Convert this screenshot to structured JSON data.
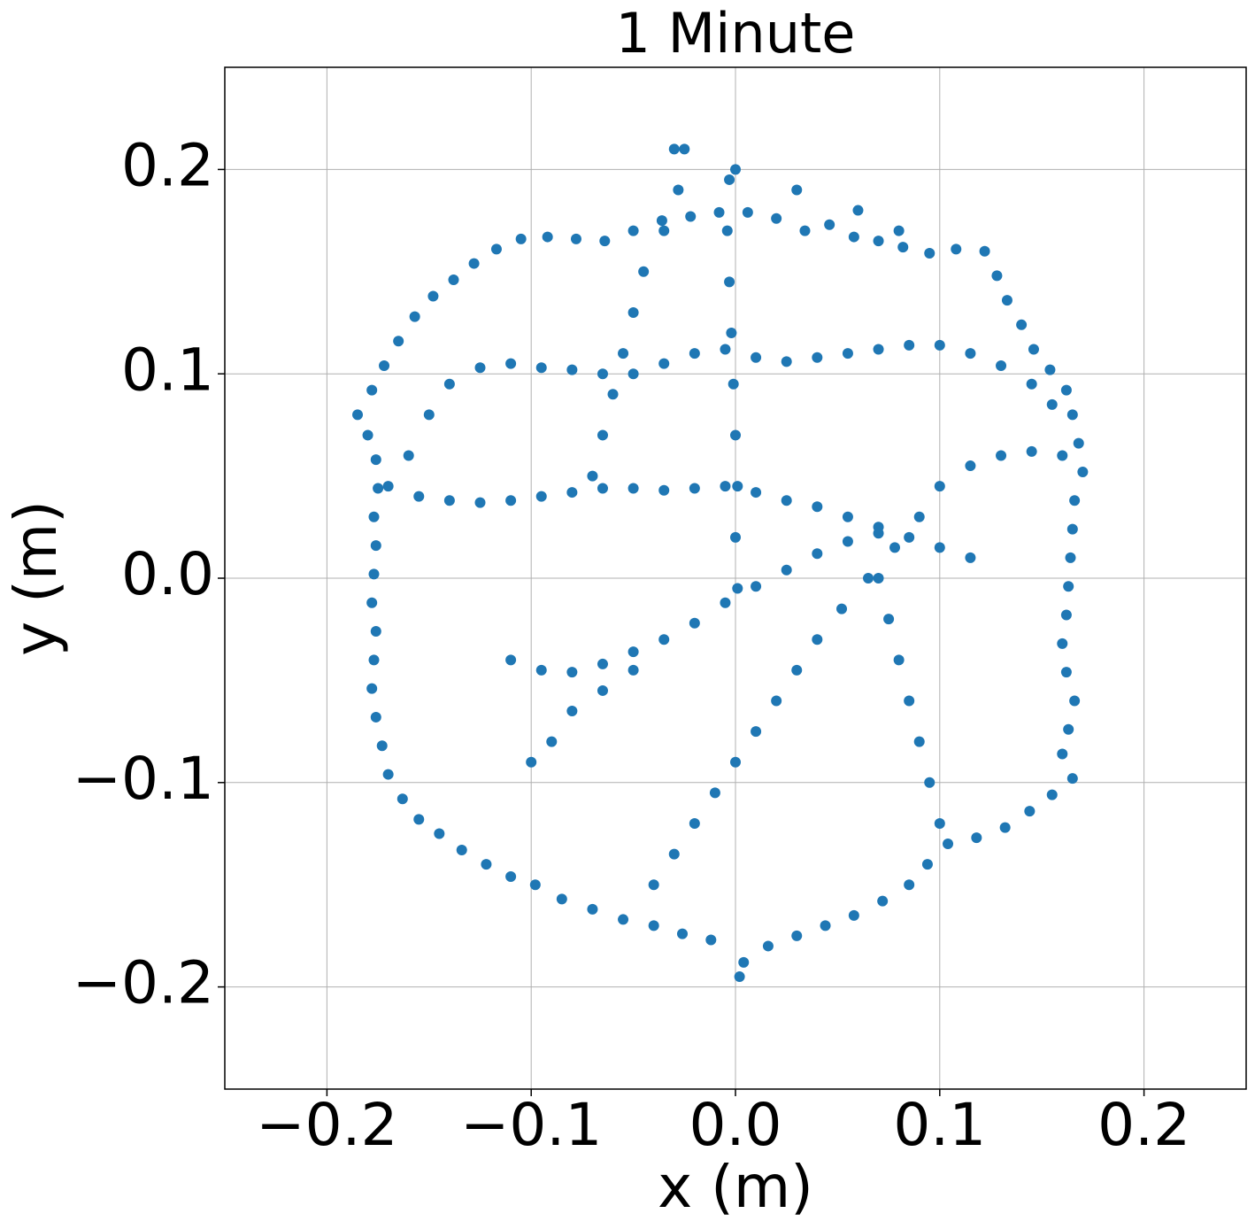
{
  "chart_data": {
    "type": "scatter",
    "title": "1 Minute",
    "x_label": "x (m)",
    "y_label": "y (m)",
    "color": "#1f77b4",
    "grid": true,
    "xlim": [
      -0.25,
      0.25
    ],
    "ylim": [
      -0.25,
      0.25
    ],
    "xticks": [
      {
        "value": -0.2,
        "label": "−0.2"
      },
      {
        "value": -0.1,
        "label": "−0.1"
      },
      {
        "value": 0,
        "label": "0.0"
      },
      0.1,
      0.2
    ],
    "yticks": [
      {
        "value": -0.2,
        "label": "−0.2"
      },
      {
        "value": -0.1,
        "label": "−0.1"
      },
      {
        "value": 0,
        "label": "0.0"
      },
      0.1,
      0.2
    ],
    "x": [
      -0.185,
      -0.178,
      -0.172,
      -0.165,
      -0.157,
      -0.148,
      -0.138,
      -0.128,
      -0.117,
      -0.105,
      -0.092,
      -0.078,
      -0.064,
      -0.05,
      -0.036,
      -0.022,
      -0.008,
      0.006,
      0.02,
      0.034,
      0.046,
      0.058,
      0.07,
      0.082,
      0.095,
      0.108,
      0.122,
      0.128,
      0.133,
      0.14,
      0.146,
      0.154,
      0.162,
      0.165,
      0.168,
      0.17,
      0.166,
      0.165,
      0.164,
      0.163,
      0.162,
      0.16,
      0.162,
      0.166,
      0.163,
      0.16,
      0.165,
      0.155,
      0.144,
      0.132,
      0.118,
      0.104,
      0.094,
      0.085,
      0.072,
      0.058,
      0.044,
      0.03,
      0.016,
      0.004,
      0.002,
      -0.012,
      -0.026,
      -0.04,
      -0.055,
      -0.07,
      -0.085,
      -0.098,
      -0.11,
      -0.122,
      -0.134,
      -0.145,
      -0.155,
      -0.163,
      -0.17,
      -0.173,
      -0.176,
      -0.178,
      -0.177,
      -0.176,
      -0.178,
      -0.177,
      -0.176,
      -0.177,
      -0.175,
      -0.176,
      -0.18,
      -0.16,
      -0.15,
      -0.14,
      -0.125,
      -0.11,
      -0.095,
      -0.08,
      -0.065,
      -0.05,
      -0.035,
      -0.02,
      -0.005,
      0.01,
      0.025,
      0.04,
      0.055,
      0.07,
      0.085,
      0.1,
      0.115,
      0.13,
      0.145,
      0.155,
      -0.04,
      -0.03,
      -0.02,
      -0.01,
      0.0,
      0.01,
      0.02,
      0.03,
      0.04,
      0.052,
      0.065,
      0.078,
      0.09,
      0.1,
      0.115,
      0.13,
      0.145,
      0.16,
      -0.17,
      -0.155,
      -0.14,
      -0.125,
      -0.11,
      -0.095,
      -0.08,
      -0.065,
      -0.05,
      -0.035,
      -0.02,
      -0.005,
      0.01,
      0.025,
      0.04,
      0.055,
      0.07,
      0.085,
      0.1,
      0.115,
      -0.11,
      -0.095,
      -0.08,
      -0.065,
      -0.05,
      -0.035,
      -0.02,
      -0.005,
      0.01,
      0.025,
      0.04,
      0.055,
      0.07,
      -0.003,
      -0.004,
      -0.003,
      -0.002,
      -0.001,
      0.0,
      0.001,
      0.0,
      0.001,
      -0.03,
      -0.028,
      -0.035,
      -0.045,
      -0.05,
      -0.055,
      -0.06,
      -0.065,
      -0.07,
      0.07,
      0.075,
      0.08,
      0.085,
      0.09,
      0.095,
      0.1,
      -0.1,
      -0.09,
      -0.08,
      -0.065,
      -0.05,
      -0.025,
      0.0,
      0.03,
      0.06,
      0.08
    ],
    "values": [
      0.08,
      0.092,
      0.104,
      0.116,
      0.128,
      0.138,
      0.146,
      0.154,
      0.161,
      0.166,
      0.167,
      0.166,
      0.165,
      0.17,
      0.175,
      0.177,
      0.179,
      0.179,
      0.176,
      0.17,
      0.173,
      0.167,
      0.165,
      0.162,
      0.159,
      0.161,
      0.16,
      0.148,
      0.136,
      0.124,
      0.112,
      0.102,
      0.092,
      0.08,
      0.066,
      0.052,
      0.038,
      0.024,
      0.01,
      -0.004,
      -0.018,
      -0.032,
      -0.046,
      -0.06,
      -0.074,
      -0.086,
      -0.098,
      -0.106,
      -0.114,
      -0.122,
      -0.127,
      -0.13,
      -0.14,
      -0.15,
      -0.158,
      -0.165,
      -0.17,
      -0.175,
      -0.18,
      -0.188,
      -0.195,
      -0.177,
      -0.174,
      -0.17,
      -0.167,
      -0.162,
      -0.157,
      -0.15,
      -0.146,
      -0.14,
      -0.133,
      -0.125,
      -0.118,
      -0.108,
      -0.096,
      -0.082,
      -0.068,
      -0.054,
      -0.04,
      -0.026,
      -0.012,
      0.002,
      0.016,
      0.03,
      0.044,
      0.058,
      0.07,
      0.06,
      0.08,
      0.095,
      0.103,
      0.105,
      0.103,
      0.102,
      0.1,
      0.1,
      0.105,
      0.11,
      0.112,
      0.108,
      0.106,
      0.108,
      0.11,
      0.112,
      0.114,
      0.114,
      0.11,
      0.104,
      0.095,
      0.085,
      -0.15,
      -0.135,
      -0.12,
      -0.105,
      -0.09,
      -0.075,
      -0.06,
      -0.045,
      -0.03,
      -0.015,
      0.0,
      0.015,
      0.03,
      0.045,
      0.055,
      0.06,
      0.062,
      0.06,
      0.045,
      0.04,
      0.038,
      0.037,
      0.038,
      0.04,
      0.042,
      0.044,
      0.044,
      0.043,
      0.044,
      0.045,
      0.042,
      0.038,
      0.035,
      0.03,
      0.025,
      0.02,
      0.015,
      0.01,
      -0.04,
      -0.045,
      -0.046,
      -0.042,
      -0.036,
      -0.03,
      -0.022,
      -0.012,
      -0.004,
      0.004,
      0.012,
      0.018,
      0.022,
      0.195,
      0.17,
      0.145,
      0.12,
      0.095,
      0.07,
      0.045,
      0.02,
      -0.005,
      0.21,
      0.19,
      0.17,
      0.15,
      0.13,
      0.11,
      0.09,
      0.07,
      0.05,
      0.0,
      -0.02,
      -0.04,
      -0.06,
      -0.08,
      -0.1,
      -0.12,
      -0.09,
      -0.08,
      -0.065,
      -0.055,
      -0.045,
      0.21,
      0.2,
      0.19,
      0.18,
      0.17
    ]
  }
}
